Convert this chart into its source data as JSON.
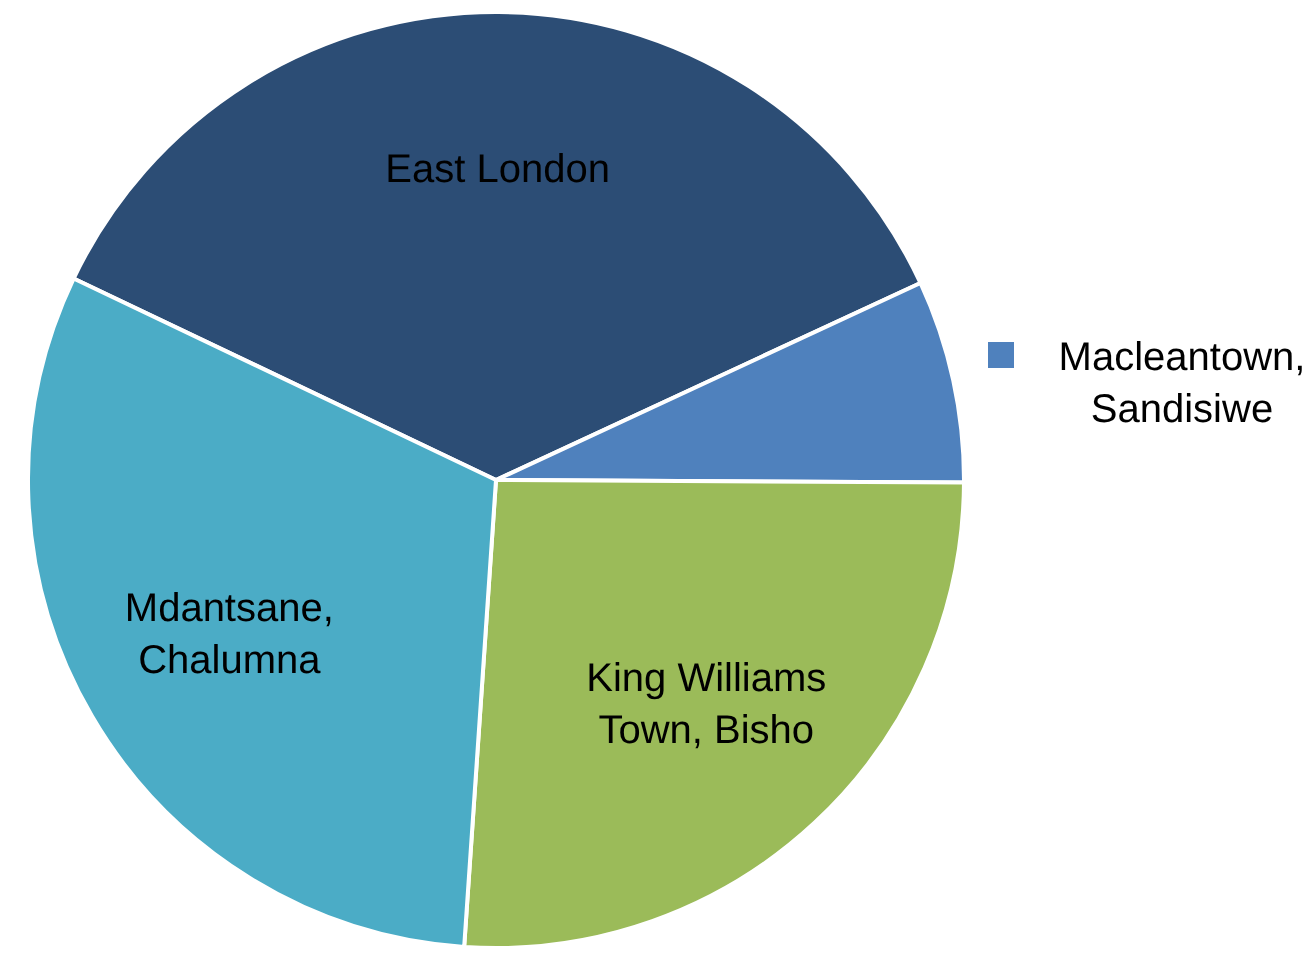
{
  "chart_data": {
    "type": "pie",
    "categories": [
      "East London",
      "Macleantown, Sandisiwe",
      "King Williams Town, Bisho",
      "Mdantsane, Chalumna"
    ],
    "values": [
      36,
      7,
      26,
      31
    ],
    "colors": [
      "#2c4d75",
      "#4f81bd",
      "#9bbb59",
      "#4bacc6"
    ],
    "legend": "right"
  }
}
